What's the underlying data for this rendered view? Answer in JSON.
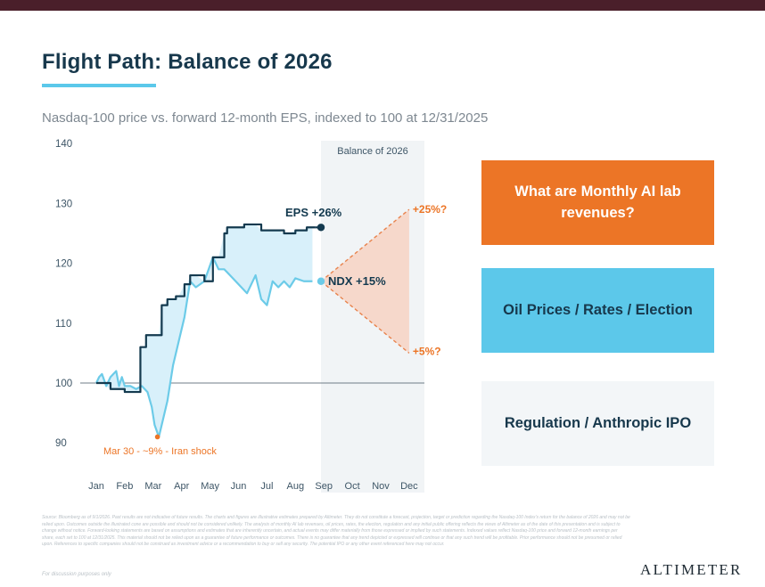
{
  "header": {
    "title": "Flight Path: Balance of 2026",
    "subtitle": "Nasdaq-100 price vs. forward 12-month EPS, indexed to 100 at 12/31/2025"
  },
  "colors": {
    "eps_line": "#143a4f",
    "ndx_line": "#6ccbe8",
    "gap_fill": "#d8f0fa",
    "cone_fill": "#f6d8cb",
    "cone_edge": "#e8834d",
    "accent_orange": "#ec7526",
    "accent_blue": "#5cc8ea",
    "shade": "#f1f4f6"
  },
  "chart_data": {
    "type": "line",
    "x_axis": {
      "tick_labels": [
        "Jan",
        "Feb",
        "Mar",
        "Apr",
        "May",
        "Jun",
        "Jul",
        "Aug",
        "Sep",
        "Oct",
        "Nov",
        "Dec"
      ],
      "range_months": [
        1,
        12
      ]
    },
    "y_axis": {
      "ticks": [
        90,
        100,
        110,
        120,
        130,
        140
      ],
      "ylim": [
        90,
        140
      ],
      "reference_line": 100
    },
    "shaded_region": {
      "label": "Balance of 2026",
      "from_month": 8.9,
      "to_month": 12
    },
    "series": [
      {
        "key": "eps",
        "x": [
          1,
          1.3,
          1.5,
          1.8,
          2,
          2.3,
          2.5,
          2.55,
          2.7,
          2.75,
          2.9,
          3.0,
          3.3,
          3.4,
          3.5,
          3.6,
          3.8,
          3.9,
          4.1,
          4.2,
          4.3,
          4.5,
          4.8,
          5,
          5.1,
          5.3,
          5.5,
          5.6,
          6,
          6.2,
          6.5,
          6.8,
          7.0,
          7.3,
          7.6,
          8.0,
          8.2,
          8.4,
          8.7
        ],
        "values": [
          100,
          100,
          99,
          99,
          98.5,
          98.5,
          98.5,
          106,
          106,
          108,
          108,
          108,
          113,
          113,
          114,
          114,
          114.5,
          114.5,
          116.5,
          116.5,
          118,
          118,
          117,
          117,
          121,
          121,
          125,
          126,
          126,
          126.5,
          126.5,
          125.5,
          125.5,
          125.5,
          125,
          125.5,
          125.5,
          126,
          126
        ]
      },
      {
        "key": "ndx",
        "x": [
          1,
          1.1,
          1.2,
          1.35,
          1.5,
          1.7,
          1.8,
          1.9,
          2,
          2.2,
          2.4,
          2.6,
          2.8,
          2.95,
          3.05,
          3.2,
          3.35,
          3.5,
          3.7,
          3.9,
          4.1,
          4.3,
          4.5,
          4.8,
          5.1,
          5.3,
          5.5,
          5.7,
          5.9,
          6.1,
          6.3,
          6.6,
          6.8,
          7.0,
          7.2,
          7.4,
          7.6,
          7.8,
          8.0,
          8.3,
          8.6
        ],
        "values": [
          100,
          101,
          101.5,
          99.5,
          101,
          102,
          99.5,
          101,
          99.5,
          99.5,
          99,
          99.5,
          98.5,
          96,
          93,
          91,
          94,
          97,
          103,
          107,
          111,
          117,
          116,
          117,
          121,
          119,
          119,
          118,
          117,
          116,
          115,
          118,
          114,
          113,
          117,
          116,
          117,
          116,
          117.5,
          117,
          117
        ]
      }
    ],
    "end_labels": {
      "eps": "EPS +26%",
      "ndx": "NDX +15%"
    },
    "projection": {
      "start_month": 8.9,
      "start_value": 117,
      "end_month": 12,
      "upper_value": 129,
      "lower_value": 105,
      "upper_label": "+25%?",
      "lower_label": "+5%?"
    },
    "annotations": [
      {
        "text": "Mar 30 - ~9% - Iran shock",
        "month": 3.15,
        "value": 91
      }
    ]
  },
  "callouts": [
    "What are Monthly AI lab revenues?",
    "Oil Prices / Rates / Election",
    "Regulation / Anthropic IPO"
  ],
  "footer": {
    "note": "Source: Bloomberg as of 9/1/2026. Past results are not indicative of future results. The charts and figures are illustrative estimates prepared by Altimeter. They do not constitute a forecast, projection, target or prediction regarding the Nasdaq-100 Index's return for the balance of 2026 and may not be relied upon. Outcomes outside the illustrated cone are possible and should not be considered unlikely. The analysis of monthly AI lab revenues, oil prices, rates, the election, regulation and any initial public offering reflects the views of Altimeter as of the date of this presentation and is subject to change without notice. Forward-looking statements are based on assumptions and estimates that are inherently uncertain, and actual events may differ materially from those expressed or implied by such statements. Indexed values reflect Nasdaq-100 price and forward 12-month earnings per share, each set to 100 at 12/31/2025. This material should not be relied upon as a guarantee of future performance or outcomes. There is no guarantee that any trend depicted or expressed will continue or that any such trend will be profitable. Prior performance should not be presumed or relied upon. References to specific companies should not be construed as investment advice or a recommendation to buy or sell any security. The potential IPO or any other event referenced here may not occur.",
    "disclaimer": "For discussion purposes only",
    "logo": "ALTIMETER"
  }
}
